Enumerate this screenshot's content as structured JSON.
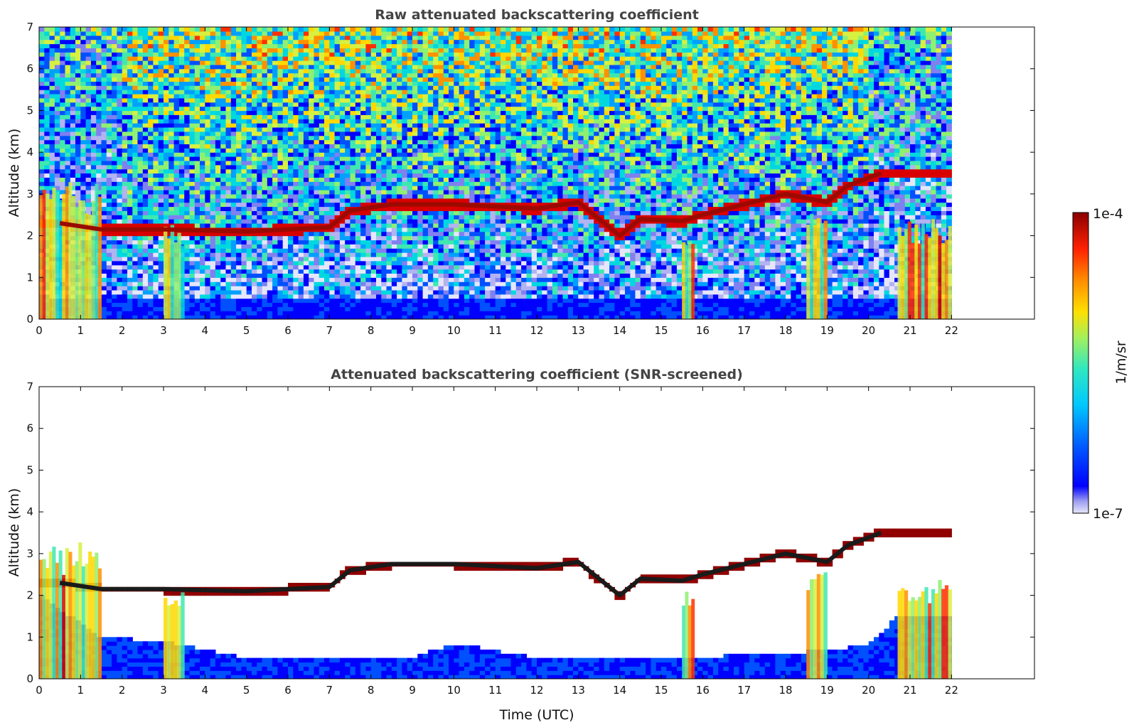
{
  "figure": {
    "xlabel": "Time (UTC)"
  },
  "colorbar": {
    "label": "1/m/sr",
    "min_label": "1e-7",
    "max_label": "1e-4",
    "colors": [
      "#e6e6fa",
      "#b3b3f2",
      "#8080f0",
      "#0000ff",
      "#0050ff",
      "#00a0ff",
      "#00d8e0",
      "#40e8b0",
      "#90f070",
      "#d8f040",
      "#ffd800",
      "#ff9000",
      "#ff3000",
      "#d80000",
      "#900000"
    ]
  },
  "chart_data": [
    {
      "type": "heatmap",
      "title": "Raw attenuated backscattering coefficient",
      "xlabel": "",
      "ylabel": "Altitude (km)",
      "x_ticks": [
        0,
        1,
        2,
        3,
        4,
        5,
        6,
        7,
        8,
        9,
        10,
        11,
        12,
        13,
        14,
        15,
        16,
        17,
        18,
        19,
        20,
        21,
        22
      ],
      "y_ticks": [
        0,
        1,
        2,
        3,
        4,
        5,
        6,
        7
      ],
      "xlim": [
        0,
        24
      ],
      "ylim": [
        0,
        7
      ],
      "data_extent_x": [
        0,
        22
      ],
      "colorscale": "log",
      "value_range": [
        1e-07,
        0.0001
      ],
      "features": {
        "cloud_layer_km": [
          [
            0.5,
            2.3
          ],
          [
            1.5,
            2.15
          ],
          [
            3,
            2.15
          ],
          [
            5,
            2.1
          ],
          [
            6,
            2.15
          ],
          [
            7,
            2.2
          ],
          [
            7.5,
            2.6
          ],
          [
            8.5,
            2.75
          ],
          [
            10,
            2.75
          ],
          [
            11,
            2.7
          ],
          [
            12,
            2.65
          ],
          [
            13,
            2.8
          ],
          [
            14,
            2.0
          ],
          [
            14.5,
            2.4
          ],
          [
            15.5,
            2.35
          ],
          [
            16,
            2.5
          ],
          [
            17,
            2.75
          ],
          [
            18,
            3.0
          ],
          [
            19,
            2.8
          ],
          [
            19.5,
            3.2
          ],
          [
            20.3,
            3.5
          ]
        ],
        "aerosol_columns_h": [
          [
            0,
            1.5
          ],
          [
            3,
            3.5
          ],
          [
            15.5,
            15.8
          ],
          [
            18.5,
            19
          ],
          [
            20.7,
            22
          ]
        ]
      }
    },
    {
      "type": "heatmap",
      "title": "Attenuated backscattering coefficient (SNR-screened)",
      "xlabel": "Time (UTC)",
      "ylabel": "Altitude (km)",
      "x_ticks": [
        0,
        1,
        2,
        3,
        4,
        5,
        6,
        7,
        8,
        9,
        10,
        11,
        12,
        13,
        14,
        15,
        16,
        17,
        18,
        19,
        20,
        21,
        22
      ],
      "y_ticks": [
        0,
        1,
        2,
        3,
        4,
        5,
        6,
        7
      ],
      "xlim": [
        0,
        24
      ],
      "ylim": [
        0,
        7
      ],
      "data_extent_x": [
        0,
        22
      ],
      "colorscale": "log",
      "value_range": [
        1e-07,
        0.0001
      ],
      "features": {
        "cloud_layer_km": [
          [
            0.5,
            2.3
          ],
          [
            1.5,
            2.15
          ],
          [
            3,
            2.15
          ],
          [
            5,
            2.1
          ],
          [
            6,
            2.15
          ],
          [
            7,
            2.2
          ],
          [
            7.5,
            2.6
          ],
          [
            8.5,
            2.75
          ],
          [
            10,
            2.75
          ],
          [
            11,
            2.7
          ],
          [
            12,
            2.65
          ],
          [
            13,
            2.8
          ],
          [
            14,
            2.0
          ],
          [
            14.5,
            2.4
          ],
          [
            15.5,
            2.35
          ],
          [
            16,
            2.5
          ],
          [
            17,
            2.75
          ],
          [
            18,
            3.0
          ],
          [
            19,
            2.8
          ],
          [
            19.5,
            3.2
          ],
          [
            20.3,
            3.5
          ]
        ],
        "boundary_layer_top_km": [
          [
            0,
            2.0
          ],
          [
            1.5,
            1.0
          ],
          [
            3,
            0.9
          ],
          [
            5,
            0.5
          ],
          [
            9,
            0.5
          ],
          [
            10,
            0.85
          ],
          [
            12,
            0.5
          ],
          [
            15,
            0.5
          ],
          [
            18,
            0.6
          ],
          [
            20,
            0.8
          ],
          [
            20.7,
            1.5
          ]
        ]
      }
    }
  ]
}
